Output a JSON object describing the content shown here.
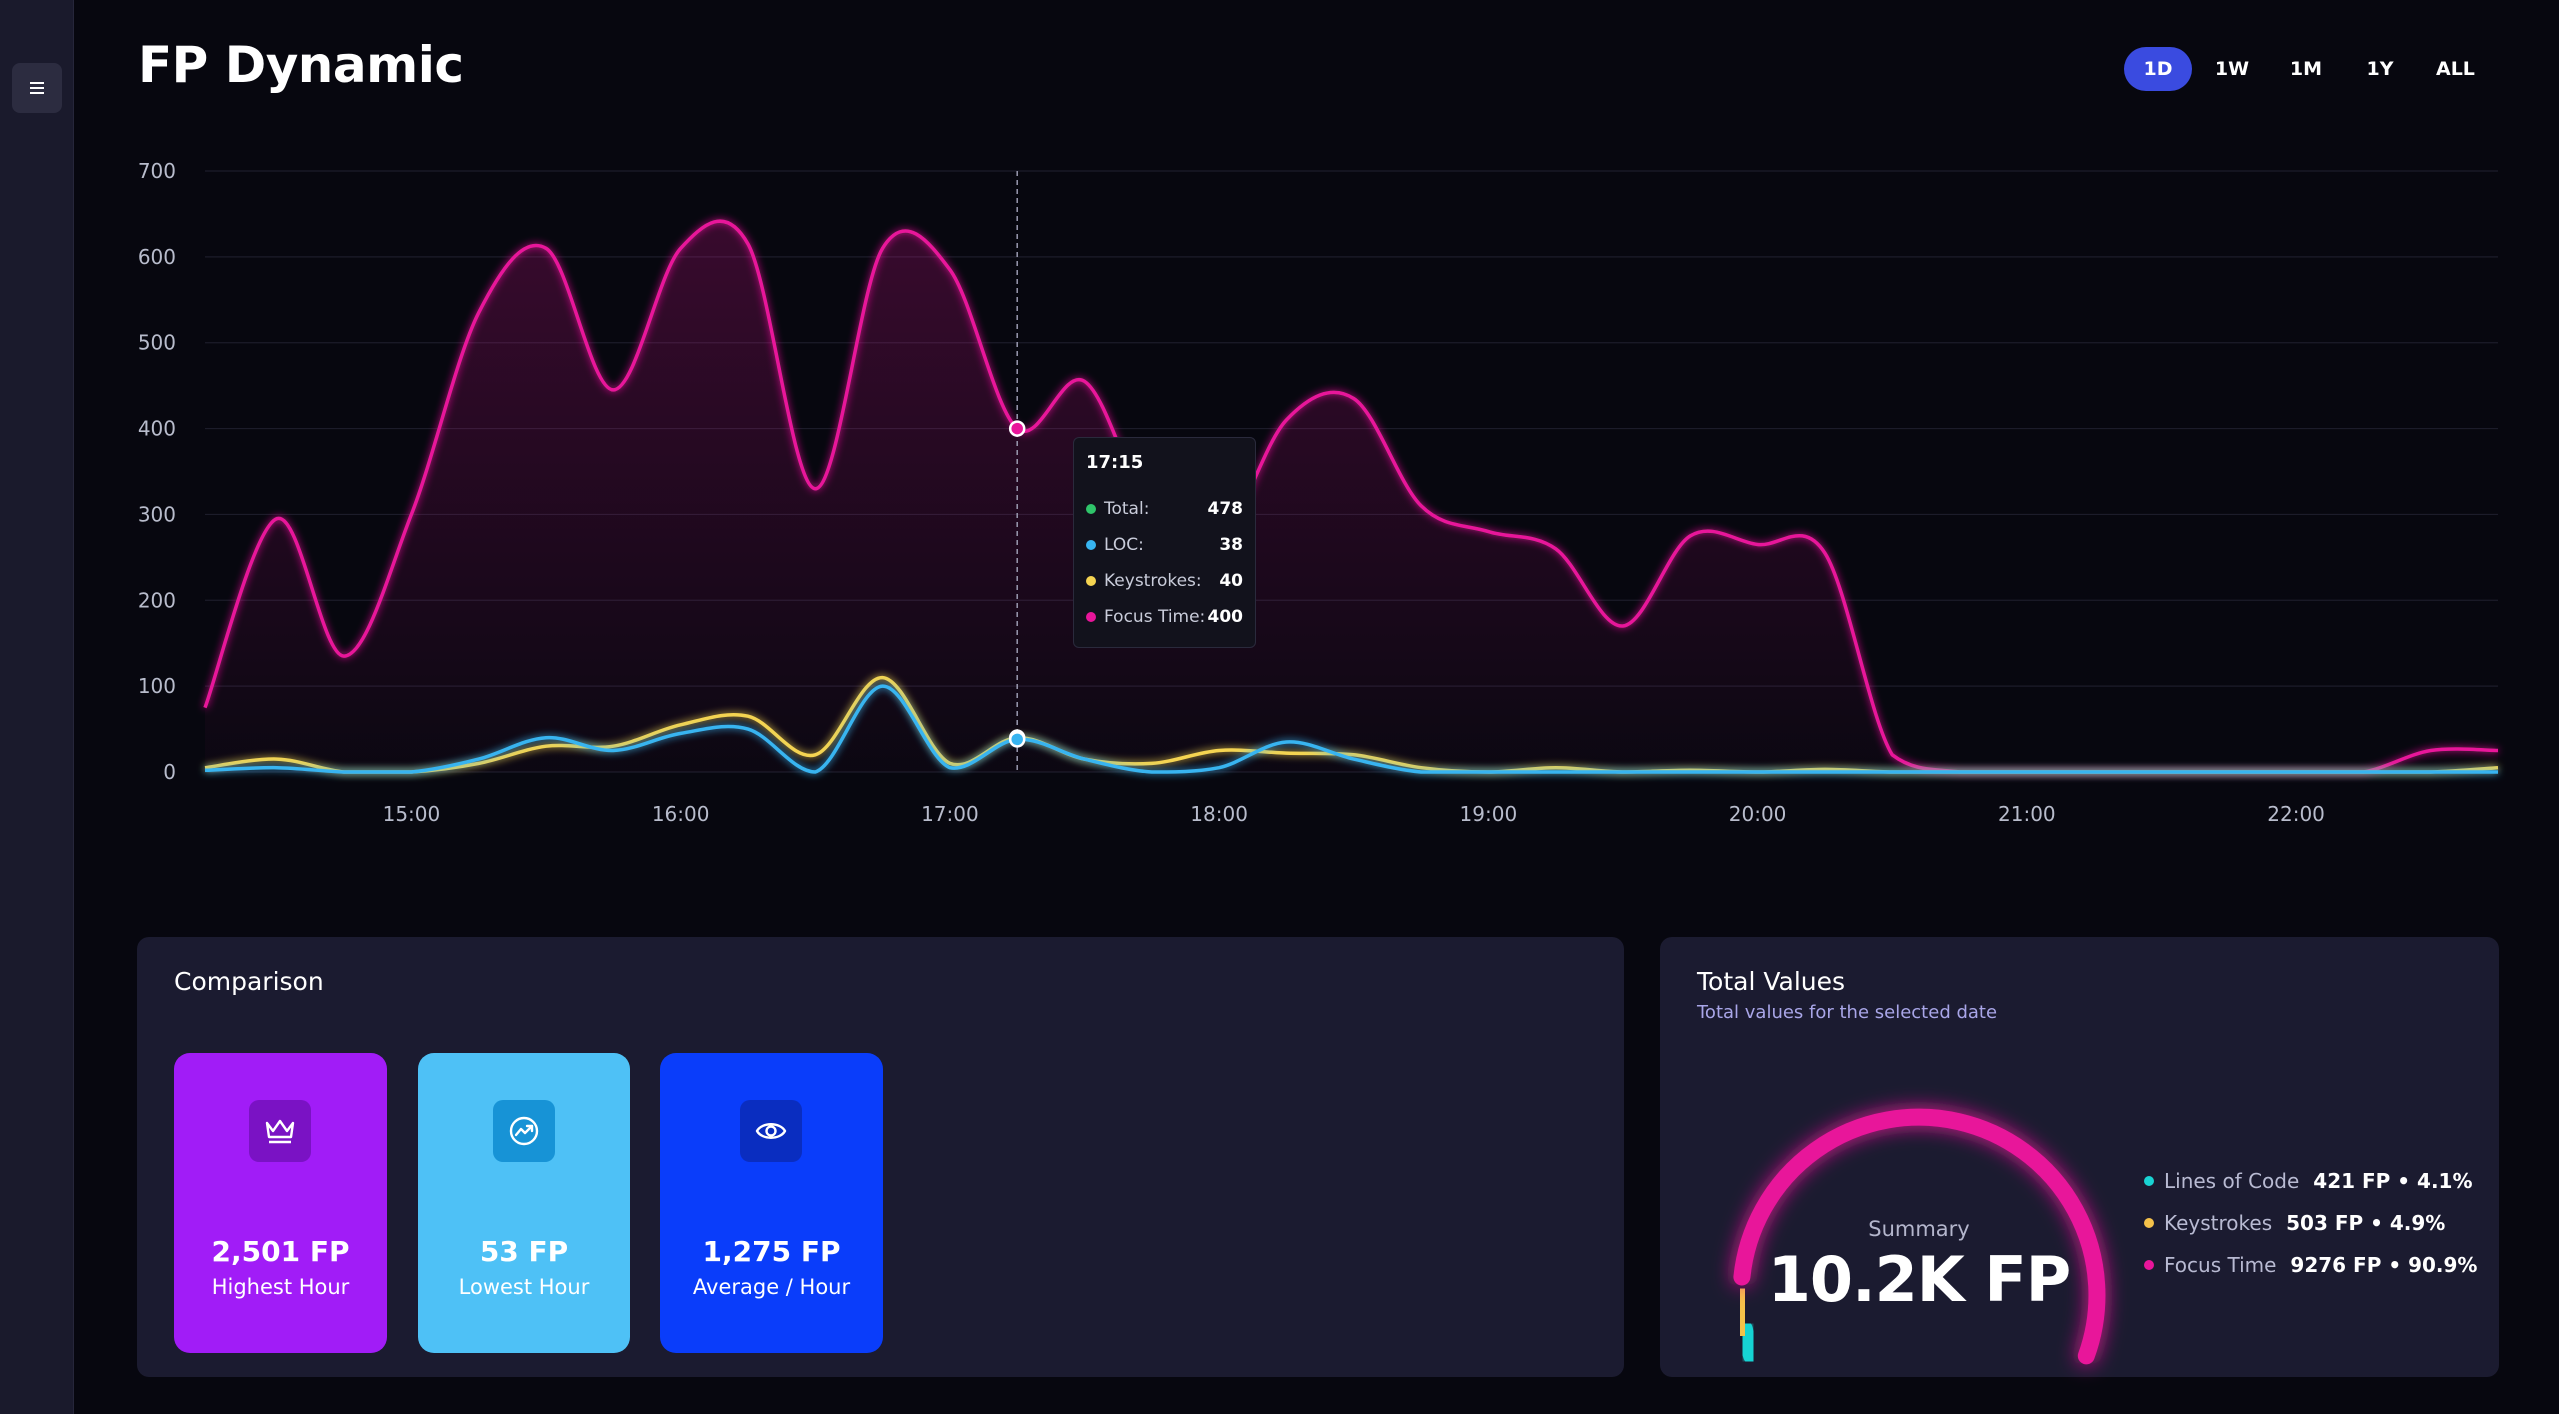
{
  "header": {
    "title": "FP Dynamic"
  },
  "range_tabs": [
    {
      "label": "1D",
      "active": true
    },
    {
      "label": "1W",
      "active": false
    },
    {
      "label": "1M",
      "active": false
    },
    {
      "label": "1Y",
      "active": false
    },
    {
      "label": "ALL",
      "active": false
    }
  ],
  "chart_data": {
    "type": "line",
    "xlabel": "",
    "ylabel": "",
    "ylim": [
      0,
      700
    ],
    "xlim": [
      "14:14",
      "22:45"
    ],
    "y_ticks": [
      "0",
      "100",
      "200",
      "300",
      "400",
      "500",
      "600",
      "700"
    ],
    "x_ticks": [
      "15:00",
      "16:00",
      "17:00",
      "18:00",
      "19:00",
      "20:00",
      "21:00",
      "22:00"
    ],
    "grid": true,
    "legend": "none",
    "series": [
      {
        "name": "Focus Time",
        "color": "#e8159a",
        "x": [
          "14:14",
          "14:30",
          "14:45",
          "15:00",
          "15:15",
          "15:30",
          "15:45",
          "16:00",
          "16:15",
          "16:30",
          "16:45",
          "17:00",
          "17:15",
          "17:30",
          "17:45",
          "18:00",
          "18:15",
          "18:30",
          "18:45",
          "19:00",
          "19:15",
          "19:30",
          "19:45",
          "20:00",
          "20:15",
          "20:30",
          "20:45",
          "21:00",
          "21:15",
          "21:30",
          "21:45",
          "22:00",
          "22:15",
          "22:30",
          "22:45"
        ],
        "y": [
          75,
          295,
          135,
          300,
          535,
          610,
          445,
          610,
          615,
          330,
          610,
          585,
          400,
          455,
          300,
          270,
          410,
          435,
          310,
          280,
          260,
          170,
          275,
          265,
          255,
          20,
          0,
          0,
          0,
          0,
          0,
          0,
          0,
          25,
          25
        ]
      },
      {
        "name": "Keystrokes",
        "color": "#f5d451",
        "x": [
          "14:14",
          "14:30",
          "14:45",
          "15:00",
          "15:15",
          "15:30",
          "15:45",
          "16:00",
          "16:15",
          "16:30",
          "16:45",
          "17:00",
          "17:15",
          "17:30",
          "17:45",
          "18:00",
          "18:15",
          "18:30",
          "18:45",
          "19:00",
          "19:15",
          "19:30",
          "19:45",
          "20:00",
          "20:15",
          "20:30",
          "20:45",
          "21:00",
          "21:15",
          "21:30",
          "21:45",
          "22:00",
          "22:15",
          "22:30",
          "22:45"
        ],
        "y": [
          5,
          15,
          0,
          0,
          10,
          30,
          30,
          55,
          65,
          20,
          110,
          10,
          40,
          15,
          10,
          25,
          22,
          20,
          5,
          0,
          5,
          0,
          2,
          0,
          3,
          0,
          0,
          0,
          0,
          0,
          0,
          0,
          0,
          0,
          5
        ]
      },
      {
        "name": "LOC",
        "color": "#37b4f0",
        "x": [
          "14:14",
          "14:30",
          "14:45",
          "15:00",
          "15:15",
          "15:30",
          "15:45",
          "16:00",
          "16:15",
          "16:30",
          "16:45",
          "17:00",
          "17:15",
          "17:30",
          "17:45",
          "18:00",
          "18:15",
          "18:30",
          "18:45",
          "19:00",
          "19:15",
          "19:30",
          "19:45",
          "20:00",
          "20:15",
          "20:30",
          "20:45",
          "21:00",
          "21:15",
          "21:30",
          "21:45",
          "22:00",
          "22:15",
          "22:30",
          "22:45"
        ],
        "y": [
          2,
          5,
          0,
          0,
          15,
          40,
          25,
          45,
          50,
          0,
          100,
          5,
          38,
          15,
          0,
          5,
          35,
          15,
          0,
          0,
          0,
          0,
          0,
          0,
          0,
          0,
          0,
          0,
          0,
          0,
          0,
          0,
          0,
          0,
          0
        ]
      }
    ]
  },
  "tooltip": {
    "time": "17:15",
    "rows": [
      {
        "label": "Total:",
        "value": "478",
        "color": "#2fc46a"
      },
      {
        "label": "LOC:",
        "value": "38",
        "color": "#37b4f0"
      },
      {
        "label": "Keystrokes:",
        "value": "40",
        "color": "#f5d451"
      },
      {
        "label": "Focus Time:",
        "value": "400",
        "color": "#e8159a"
      }
    ]
  },
  "comparison": {
    "title": "Comparison",
    "cards": [
      {
        "value": "2,501 FP",
        "label": "Highest Hour",
        "icon": "crown-icon",
        "color": "#a11cf7"
      },
      {
        "value": "53 FP",
        "label": "Lowest Hour",
        "icon": "trend-icon",
        "color": "#4ec1f6"
      },
      {
        "value": "1,275 FP",
        "label": "Average / Hour",
        "icon": "eye-icon",
        "color": "#0a3dfa"
      }
    ]
  },
  "totals": {
    "title": "Total Values",
    "subtitle": "Total values for the selected date",
    "summary_label": "Summary",
    "summary_value": "10.2K FP",
    "gauge_shares": {
      "loc": 0.041,
      "keystrokes": 0.049,
      "focus": 0.909
    },
    "legend": [
      {
        "name": "Lines of Code",
        "value": "421 FP • 4.1%",
        "color": "#19d3d3"
      },
      {
        "name": "Keystrokes",
        "value": "503 FP • 4.9%",
        "color": "#f5c24a"
      },
      {
        "name": "Focus Time",
        "value": "9276 FP • 90.9%",
        "color": "#e8159a"
      }
    ]
  }
}
